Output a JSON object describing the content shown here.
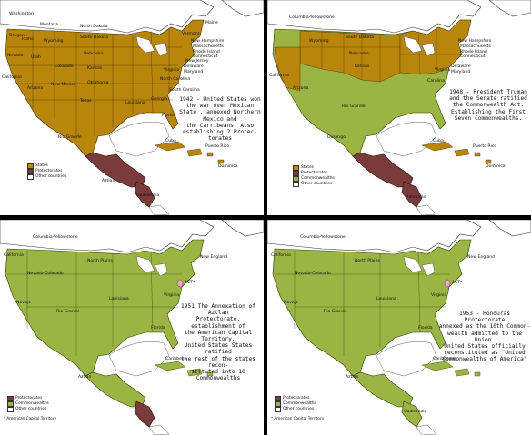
{
  "colors": {
    "states": "#b8860b",
    "protectorate": "#7a3b3b",
    "commonwealth": "#9bb544",
    "other": "#ffffff",
    "ocean": "#ffffff",
    "water_lake": "#ffffff",
    "capital_territory": "#e9a9c9"
  },
  "panels": [
    {
      "caption": [
        "1942 - United States won",
        "the war over Mexican",
        "State , annexed Northern",
        "Mexico and",
        "the Carribeans. Also",
        "establishing 2 Protec-",
        "torates"
      ],
      "legend": [
        {
          "label": "States",
          "color": "#b8860b"
        },
        {
          "label": "Protectorates",
          "color": "#7a3b3b"
        },
        {
          "label": "Other countries",
          "color": "#ffffff"
        }
      ],
      "labels": {
        "washington": "Washington",
        "oregon": "Oregon",
        "montana": "Montana",
        "idaho": "Idaho",
        "north_dakota": "North Dakota",
        "south_dakota": "South Dakota",
        "wyoming": "Wyoming",
        "nevada": "Nevada",
        "utah": "Utah",
        "colorado": "Colorado",
        "nebraska": "Nebraska",
        "kansas": "Kansas",
        "california": "California",
        "arizona": "Arizona",
        "new_mexico": "New Mexico",
        "oklahoma": "Oklahoma",
        "texas": "Texas",
        "louisiana": "Louisiana",
        "florida": "Florida",
        "georgia": "Georgia",
        "south_carolina": "South Carolina",
        "north_carolina": "North Carolina",
        "virginia": "Virginia",
        "vermont": "Vermont",
        "maine": "Maine",
        "new_hampshire": "New Hampshire",
        "massachusetts": "Massachusetts",
        "rhode_island": "Rhode Island",
        "connecticut": "Connecticut",
        "new_jersey": "New Jersey",
        "delaware": "Delaware",
        "maryland": "Maryland",
        "rio_grande": "Rio Grande",
        "cuba": "Cuba",
        "puerto_rico": "Puerto Rico",
        "dominica": "Dominica",
        "aztlan": "Aztlan",
        "guatemala": "Guatemala"
      }
    },
    {
      "caption": [
        "1948 - President Truman",
        "and the Senate ratified",
        "the Commonwealth Act.",
        "Establishing the First",
        "Seven Commonwealths."
      ],
      "legend": [
        {
          "label": "States",
          "color": "#b8860b"
        },
        {
          "label": "Protectorates",
          "color": "#7a3b3b"
        },
        {
          "label": "Commonwealths",
          "color": "#9bb544"
        },
        {
          "label": "Other countries",
          "color": "#ffffff"
        }
      ],
      "labels": {
        "columbia_yellowstone": "Columbia-Yellowstone",
        "south_dakota": "South Dakota",
        "wyoming": "Wyoming",
        "nebraska": "Nebraska",
        "kansas": "Kansas",
        "california": "California",
        "arizona": "Arizona",
        "carolina": "Carolina",
        "virginia": "Virginia",
        "new_hampshire": "New Hampshire",
        "massachusetts": "Massachusetts",
        "rhode_island": "Rhode Island",
        "connecticut": "Connecticut",
        "delaware": "Delaware",
        "maryland": "Maryland",
        "rio_grande": "Rio Grande",
        "durango": "Durango",
        "cuba": "Cuba",
        "puerto_rico": "Puerto Rico",
        "dominica": "Dominica",
        "honduras": "Honduras"
      }
    },
    {
      "caption": [
        "1951 The Annexation of Aztlan",
        "Protectorate, establishment of",
        "the American Capital Territory.",
        "United States States ratified",
        "the rest of the states recon-",
        "stituted into 10 Commonwealths"
      ],
      "legend": [
        {
          "label": "Protectorates",
          "color": "#7a3b3b"
        },
        {
          "label": "Commonwealths",
          "color": "#9bb544"
        },
        {
          "label": "Other countries",
          "color": "#ffffff"
        }
      ],
      "note": "* American Capital Territory",
      "labels": {
        "columbia_yellowstone": "Columbia-Yellowstone",
        "california": "California",
        "north_plains": "North Plains",
        "nevada_colorado": "Nevada-Colorado",
        "new_england": "New England",
        "navajo": "Navajo",
        "louisiana": "Louisiana",
        "virginia": "Virginia",
        "rio_grande": "Rio Grande",
        "florida": "Florida",
        "aztlan": "Aztlan",
        "caribbean": "Caribbean",
        "act": "ACT*"
      }
    },
    {
      "caption": [
        "1953 - Honduras Protectorate",
        "annexed as the 10th Common-",
        "wealth admitted to the Union.",
        "United States officially",
        "reconstituted as \"United",
        "Commonwealths of America\""
      ],
      "legend": [
        {
          "label": "Protectorates",
          "color": "#7a3b3b"
        },
        {
          "label": "Commonwealths",
          "color": "#9bb544"
        },
        {
          "label": "Other countries",
          "color": "#ffffff"
        }
      ],
      "note": "* American Capital Territory",
      "labels": {
        "columbia_yellowstone": "Columbia-Yellowstone",
        "california": "California",
        "north_plains": "North Plains",
        "nevada_colorado": "Nevada-Colorado",
        "new_england": "New England",
        "navajo": "Navajo",
        "louisiana": "Louisiana",
        "virginia": "Virginia",
        "rio_grande": "Rio Grande",
        "florida": "Florida",
        "aztlan": "Aztlan",
        "caribbean": "Caribbean",
        "guatemala": "Guatemala",
        "act": "ACT*"
      }
    }
  ]
}
